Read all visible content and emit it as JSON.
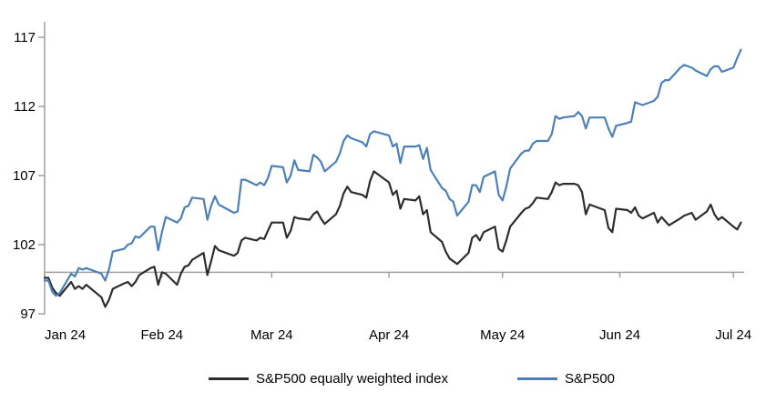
{
  "chart_data": {
    "type": "line",
    "title": "",
    "grid": "off",
    "legend_position": "bottom-center",
    "baseline_value": 100,
    "x_axis": {
      "labels": [
        "Jan 24",
        "Feb 24",
        "Mar 24",
        "Apr 24",
        "May 24",
        "Jun 24",
        "Jul 24"
      ],
      "tick_dates": [
        "01-01",
        "02-01",
        "03-01",
        "04-01",
        "05-01",
        "06-01",
        "07-01"
      ]
    },
    "y_axis": {
      "ticks": [
        97,
        102,
        107,
        112,
        117
      ],
      "min": 97,
      "max": 117
    },
    "colors": {
      "sp500_line": "#4d80b9",
      "equal_weight_line": "#2d2d2d",
      "axis": "#a0a0a0",
      "text": "#000000"
    },
    "dates": [
      "01-01",
      "01-02",
      "01-03",
      "01-04",
      "01-05",
      "01-08",
      "01-09",
      "01-10",
      "01-11",
      "01-12",
      "01-16",
      "01-17",
      "01-18",
      "01-19",
      "01-22",
      "01-23",
      "01-24",
      "01-25",
      "01-26",
      "01-29",
      "01-30",
      "01-31",
      "02-01",
      "02-02",
      "02-05",
      "02-06",
      "02-07",
      "02-08",
      "02-09",
      "02-12",
      "02-13",
      "02-14",
      "02-15",
      "02-16",
      "02-20",
      "02-21",
      "02-22",
      "02-23",
      "02-26",
      "02-27",
      "02-28",
      "02-29",
      "03-01",
      "03-04",
      "03-05",
      "03-06",
      "03-07",
      "03-08",
      "03-11",
      "03-12",
      "03-13",
      "03-14",
      "03-15",
      "03-18",
      "03-19",
      "03-20",
      "03-21",
      "03-22",
      "03-25",
      "03-26",
      "03-27",
      "03-28",
      "04-01",
      "04-02",
      "04-03",
      "04-04",
      "04-05",
      "04-08",
      "04-09",
      "04-10",
      "04-11",
      "04-12",
      "04-15",
      "04-16",
      "04-17",
      "04-18",
      "04-19",
      "04-22",
      "04-23",
      "04-24",
      "04-25",
      "04-26",
      "04-29",
      "04-30",
      "05-01",
      "05-02",
      "05-03",
      "05-06",
      "05-07",
      "05-08",
      "05-09",
      "05-10",
      "05-13",
      "05-14",
      "05-15",
      "05-16",
      "05-17",
      "05-20",
      "05-21",
      "05-22",
      "05-23",
      "05-24",
      "05-28",
      "05-29",
      "05-30",
      "05-31",
      "06-03",
      "06-04",
      "06-05",
      "06-06",
      "06-07",
      "06-10",
      "06-11",
      "06-12",
      "06-13",
      "06-14",
      "06-17",
      "06-18",
      "06-20",
      "06-21",
      "06-24",
      "06-25",
      "06-26",
      "06-27",
      "06-28",
      "07-01",
      "07-02",
      "07-03"
    ],
    "series": [
      {
        "name": "S&P500 equally weighted index",
        "color": "#2d2d2d",
        "values": [
          99.6,
          99.6,
          98.9,
          98.5,
          98.3,
          99.3,
          98.8,
          99.0,
          98.8,
          99.1,
          98.2,
          97.5,
          98.0,
          98.8,
          99.2,
          99.3,
          99.0,
          99.3,
          99.8,
          100.3,
          100.4,
          99.1,
          100.0,
          99.9,
          99.1,
          99.9,
          100.4,
          100.5,
          100.9,
          101.4,
          99.8,
          100.8,
          101.9,
          101.6,
          101.2,
          101.4,
          102.3,
          102.5,
          102.3,
          102.5,
          102.4,
          103.0,
          103.6,
          103.6,
          102.5,
          103.0,
          104.0,
          103.9,
          103.8,
          104.2,
          104.4,
          103.9,
          103.5,
          104.2,
          104.8,
          105.7,
          106.2,
          105.8,
          105.6,
          105.4,
          106.6,
          107.3,
          106.5,
          105.6,
          105.9,
          104.6,
          105.3,
          105.2,
          105.5,
          104.2,
          104.5,
          102.9,
          102.2,
          101.5,
          101.0,
          100.8,
          100.6,
          101.4,
          102.5,
          102.7,
          102.3,
          102.9,
          103.3,
          101.7,
          101.5,
          102.3,
          103.3,
          104.3,
          104.6,
          104.7,
          105.0,
          105.4,
          105.3,
          105.8,
          106.5,
          106.3,
          106.4,
          106.4,
          106.3,
          105.8,
          104.2,
          104.9,
          104.5,
          103.2,
          102.9,
          104.6,
          104.5,
          104.3,
          104.7,
          104.1,
          103.9,
          104.3,
          103.6,
          104.0,
          103.7,
          103.4,
          103.9,
          104.1,
          104.3,
          103.8,
          104.4,
          104.9,
          104.2,
          103.8,
          104.0,
          103.3,
          103.1,
          103.6
        ]
      },
      {
        "name": "S&P500",
        "color": "#4d80b9",
        "values": [
          99.4,
          99.4,
          98.6,
          98.3,
          98.5,
          99.9,
          99.7,
          100.3,
          100.2,
          100.3,
          99.9,
          99.4,
          100.2,
          101.5,
          101.7,
          102.0,
          102.1,
          102.6,
          102.5,
          103.3,
          103.3,
          101.6,
          102.9,
          104.0,
          103.6,
          103.9,
          104.7,
          104.8,
          105.4,
          105.3,
          103.8,
          104.8,
          105.5,
          104.9,
          104.3,
          104.4,
          106.7,
          106.7,
          106.3,
          106.5,
          106.3,
          106.8,
          107.7,
          107.6,
          106.5,
          107.0,
          108.1,
          107.4,
          107.3,
          108.5,
          108.3,
          108.0,
          107.3,
          108.0,
          108.6,
          109.5,
          109.9,
          109.7,
          109.4,
          109.1,
          110.0,
          110.2,
          109.9,
          109.1,
          109.3,
          107.9,
          109.1,
          109.1,
          109.2,
          108.2,
          109.0,
          107.4,
          106.1,
          105.9,
          105.3,
          105.1,
          104.1,
          105.1,
          106.3,
          106.3,
          105.8,
          106.9,
          107.3,
          105.6,
          105.2,
          106.2,
          107.5,
          108.6,
          108.8,
          108.8,
          109.3,
          109.5,
          109.5,
          110.0,
          111.3,
          111.1,
          111.2,
          111.3,
          111.6,
          111.3,
          110.4,
          111.2,
          111.2,
          110.4,
          109.8,
          110.6,
          110.8,
          110.9,
          112.3,
          112.2,
          112.1,
          112.4,
          112.7,
          113.7,
          113.9,
          113.9,
          114.8,
          115.0,
          114.8,
          114.6,
          114.2,
          114.7,
          114.9,
          114.9,
          114.5,
          114.8,
          115.5,
          116.1
        ]
      }
    ]
  }
}
